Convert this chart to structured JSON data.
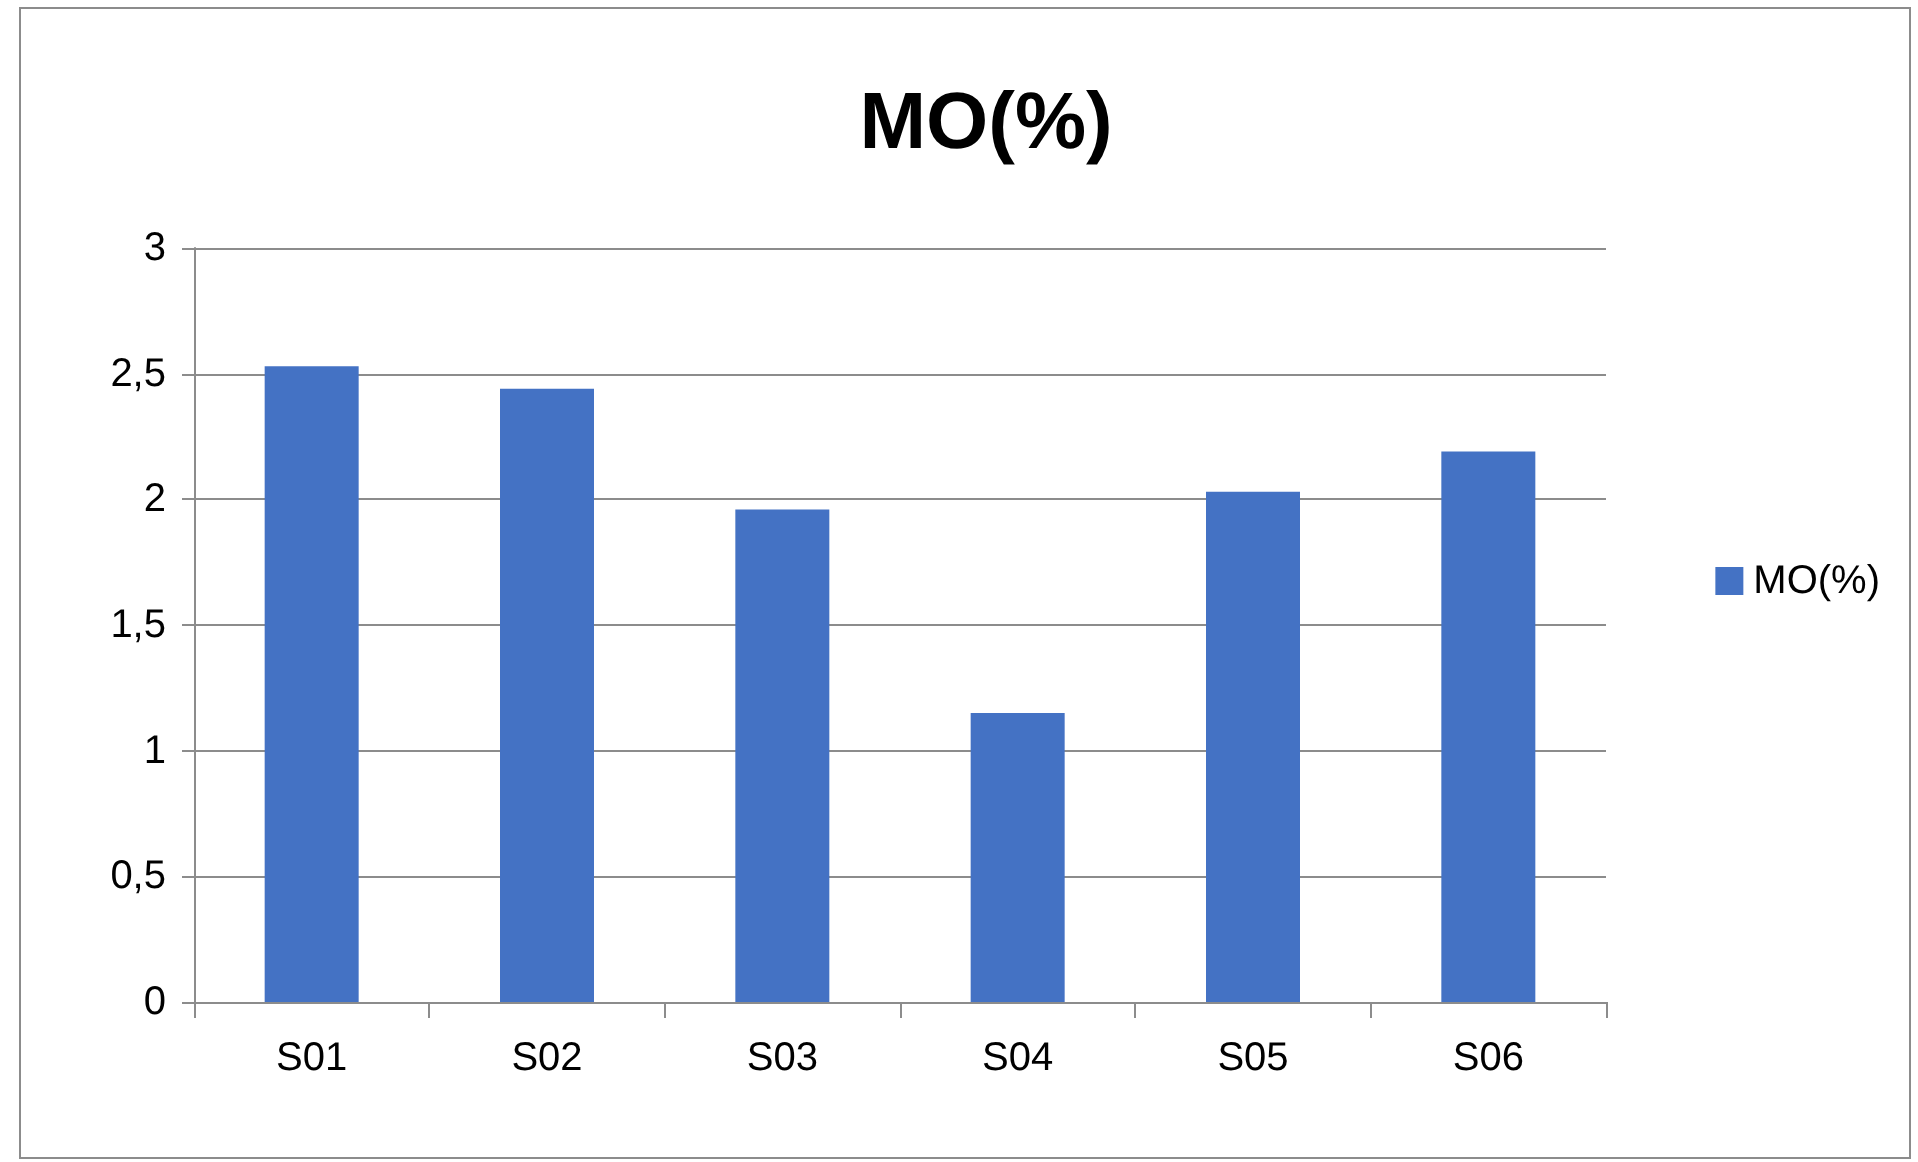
{
  "chart_data": {
    "type": "bar",
    "title": "MO(%)",
    "categories": [
      "S01",
      "S02",
      "S03",
      "S04",
      "S05",
      "S06"
    ],
    "series": [
      {
        "name": "MO(%)",
        "color": "#4472c4",
        "values": [
          2.53,
          2.44,
          1.96,
          1.15,
          2.03,
          2.19
        ]
      }
    ],
    "ylim": [
      0,
      3
    ],
    "yticks": [
      {
        "value": 0,
        "label": "0"
      },
      {
        "value": 0.5,
        "label": "0,5"
      },
      {
        "value": 1,
        "label": "1"
      },
      {
        "value": 1.5,
        "label": "1,5"
      },
      {
        "value": 2,
        "label": "2"
      },
      {
        "value": 2.5,
        "label": "2,5"
      },
      {
        "value": 3,
        "label": "3"
      }
    ],
    "grid": "y",
    "legend": "right"
  }
}
